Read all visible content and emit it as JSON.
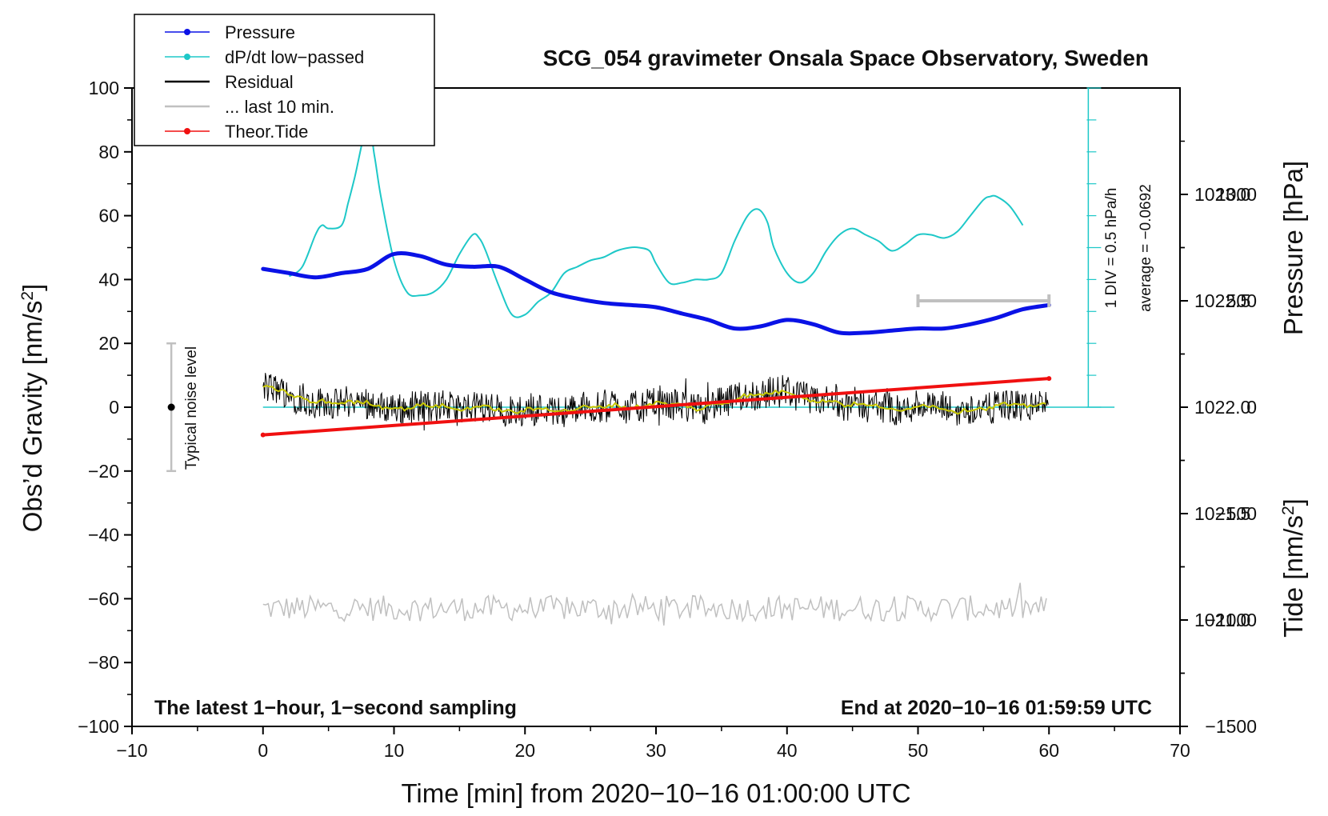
{
  "chart_data": {
    "type": "line",
    "title": "SCG_054 gravimeter Onsala Space Observatory, Sweden",
    "xlabel": "Time [min] from 2020−10−16 01:00:00 UTC",
    "ylabel": "Obs’d Gravity [nm/s",
    "ylabel_sup": "2",
    "ylabel_end": "]",
    "y2label": "Pressure [hPa]",
    "y3label": "Tide [nm/s",
    "y3label_sup": "2",
    "y3label_end": "]",
    "xlim": [
      -10,
      70
    ],
    "ylim": [
      -100,
      100
    ],
    "pressure_axis": {
      "min": 1020.5,
      "max": 1023.5
    },
    "tide_axis": {
      "min": -1500,
      "max": 1500
    },
    "x_ticks": [
      -10,
      0,
      10,
      20,
      30,
      40,
      50,
      60,
      70
    ],
    "x_tick_labels": [
      "−10",
      "0",
      "10",
      "20",
      "30",
      "40",
      "50",
      "60",
      "70"
    ],
    "y_ticks": [
      -100,
      -80,
      -60,
      -40,
      -20,
      0,
      20,
      40,
      60,
      80,
      100
    ],
    "y_tick_labels": [
      "−100",
      "−80",
      "−60",
      "−40",
      "−20",
      "0",
      "20",
      "40",
      "60",
      "80",
      "100"
    ],
    "pressure_ticks": [
      1021.0,
      1021.5,
      1022.0,
      1022.5,
      1023.0
    ],
    "pressure_tick_labels": [
      "1021.0",
      "1021.5",
      "1022.0",
      "1022.5",
      "1023.0"
    ],
    "tide_ticks": [
      -1500,
      -1000,
      -500,
      0,
      500,
      1000
    ],
    "tide_tick_labels": [
      "−1500",
      "−1000",
      "−500",
      "0",
      "500",
      "1000"
    ],
    "legend": [
      {
        "label": "Pressure",
        "color": "#0a12e6",
        "marker": true
      },
      {
        "label": "dP/dt low−passed",
        "color": "#1ec8c8",
        "marker": true
      },
      {
        "label": "Residual",
        "color": "#000000",
        "marker": false
      },
      {
        "label": "... last 10 min.",
        "color": "#c0c0c0",
        "marker": false
      },
      {
        "label": "Theor.Tide",
        "color": "#f01010",
        "marker": true
      }
    ],
    "legend_position": "top-left",
    "series": [
      {
        "name": "Pressure",
        "axis": "pressure",
        "color": "#0a12e6",
        "x": [
          0,
          2,
          4,
          6,
          8,
          10,
          12,
          14,
          16,
          18,
          20,
          22,
          24,
          26,
          28,
          30,
          32,
          34,
          36,
          38,
          40,
          42,
          44,
          46,
          48,
          50,
          52,
          54,
          56,
          58,
          60
        ],
        "y": [
          1022.65,
          1022.63,
          1022.61,
          1022.63,
          1022.65,
          1022.72,
          1022.71,
          1022.67,
          1022.66,
          1022.66,
          1022.6,
          1022.54,
          1022.51,
          1022.49,
          1022.48,
          1022.47,
          1022.44,
          1022.41,
          1022.37,
          1022.38,
          1022.41,
          1022.39,
          1022.35,
          1022.35,
          1022.36,
          1022.37,
          1022.37,
          1022.39,
          1022.42,
          1022.46,
          1022.48
        ]
      },
      {
        "name": "dP/dt low−passed",
        "axis": "gravity",
        "color": "#1ec8c8",
        "x": [
          2,
          3,
          4,
          4.5,
          5,
          6,
          6.5,
          7,
          8,
          8.5,
          9,
          10,
          11,
          12,
          13,
          14,
          15,
          16,
          16.5,
          17,
          18,
          19,
          20,
          21,
          22,
          23,
          24,
          25,
          26,
          27,
          28,
          28.7,
          29.5,
          30,
          31,
          32,
          33,
          34,
          35,
          36,
          37,
          37.8,
          38.5,
          39,
          40,
          41,
          42,
          43,
          44,
          45,
          46,
          47,
          48,
          49,
          50,
          51,
          52,
          53,
          54,
          55,
          55.5,
          56,
          57,
          58
        ],
        "y": [
          41,
          44,
          54,
          57,
          56,
          57,
          64,
          72,
          89,
          79,
          66,
          46,
          36,
          35,
          36,
          40,
          48,
          54,
          53,
          49,
          38,
          29,
          29,
          33,
          36,
          42,
          44,
          46,
          47,
          49,
          50,
          50,
          49,
          45,
          39,
          39,
          40,
          40,
          42,
          52,
          60,
          62,
          58,
          50,
          42,
          39,
          42,
          49,
          54,
          56,
          54,
          52,
          49,
          51,
          54,
          54,
          53,
          55,
          60,
          65,
          66,
          66,
          63,
          57
        ]
      },
      {
        "name": "Theor.Tide",
        "axis": "tide",
        "color": "#f01010",
        "x": [
          0,
          60
        ],
        "y": [
          -130,
          135
        ]
      }
    ],
    "reference_line": {
      "axis": "pressure",
      "value": 1022.0,
      "label": "average = −0.0692"
    },
    "scale_bar_label": "1 DIV = 0.5 hPa/h",
    "noise_label": "Typical noise level",
    "noise_bar": {
      "x": -7,
      "ymin": -20,
      "ymax": 20
    },
    "last10_bar": {
      "xmin": 50,
      "xmax": 60,
      "tide_value": 500
    },
    "residual_noise": {
      "mean": 0,
      "amplitude": 5
    },
    "last10_noise": {
      "mean": -63,
      "amplitude": 4
    },
    "footer_left": "The latest 1−hour, 1−second sampling",
    "footer_right": "End at 2020−10−16 01:59:59 UTC"
  }
}
